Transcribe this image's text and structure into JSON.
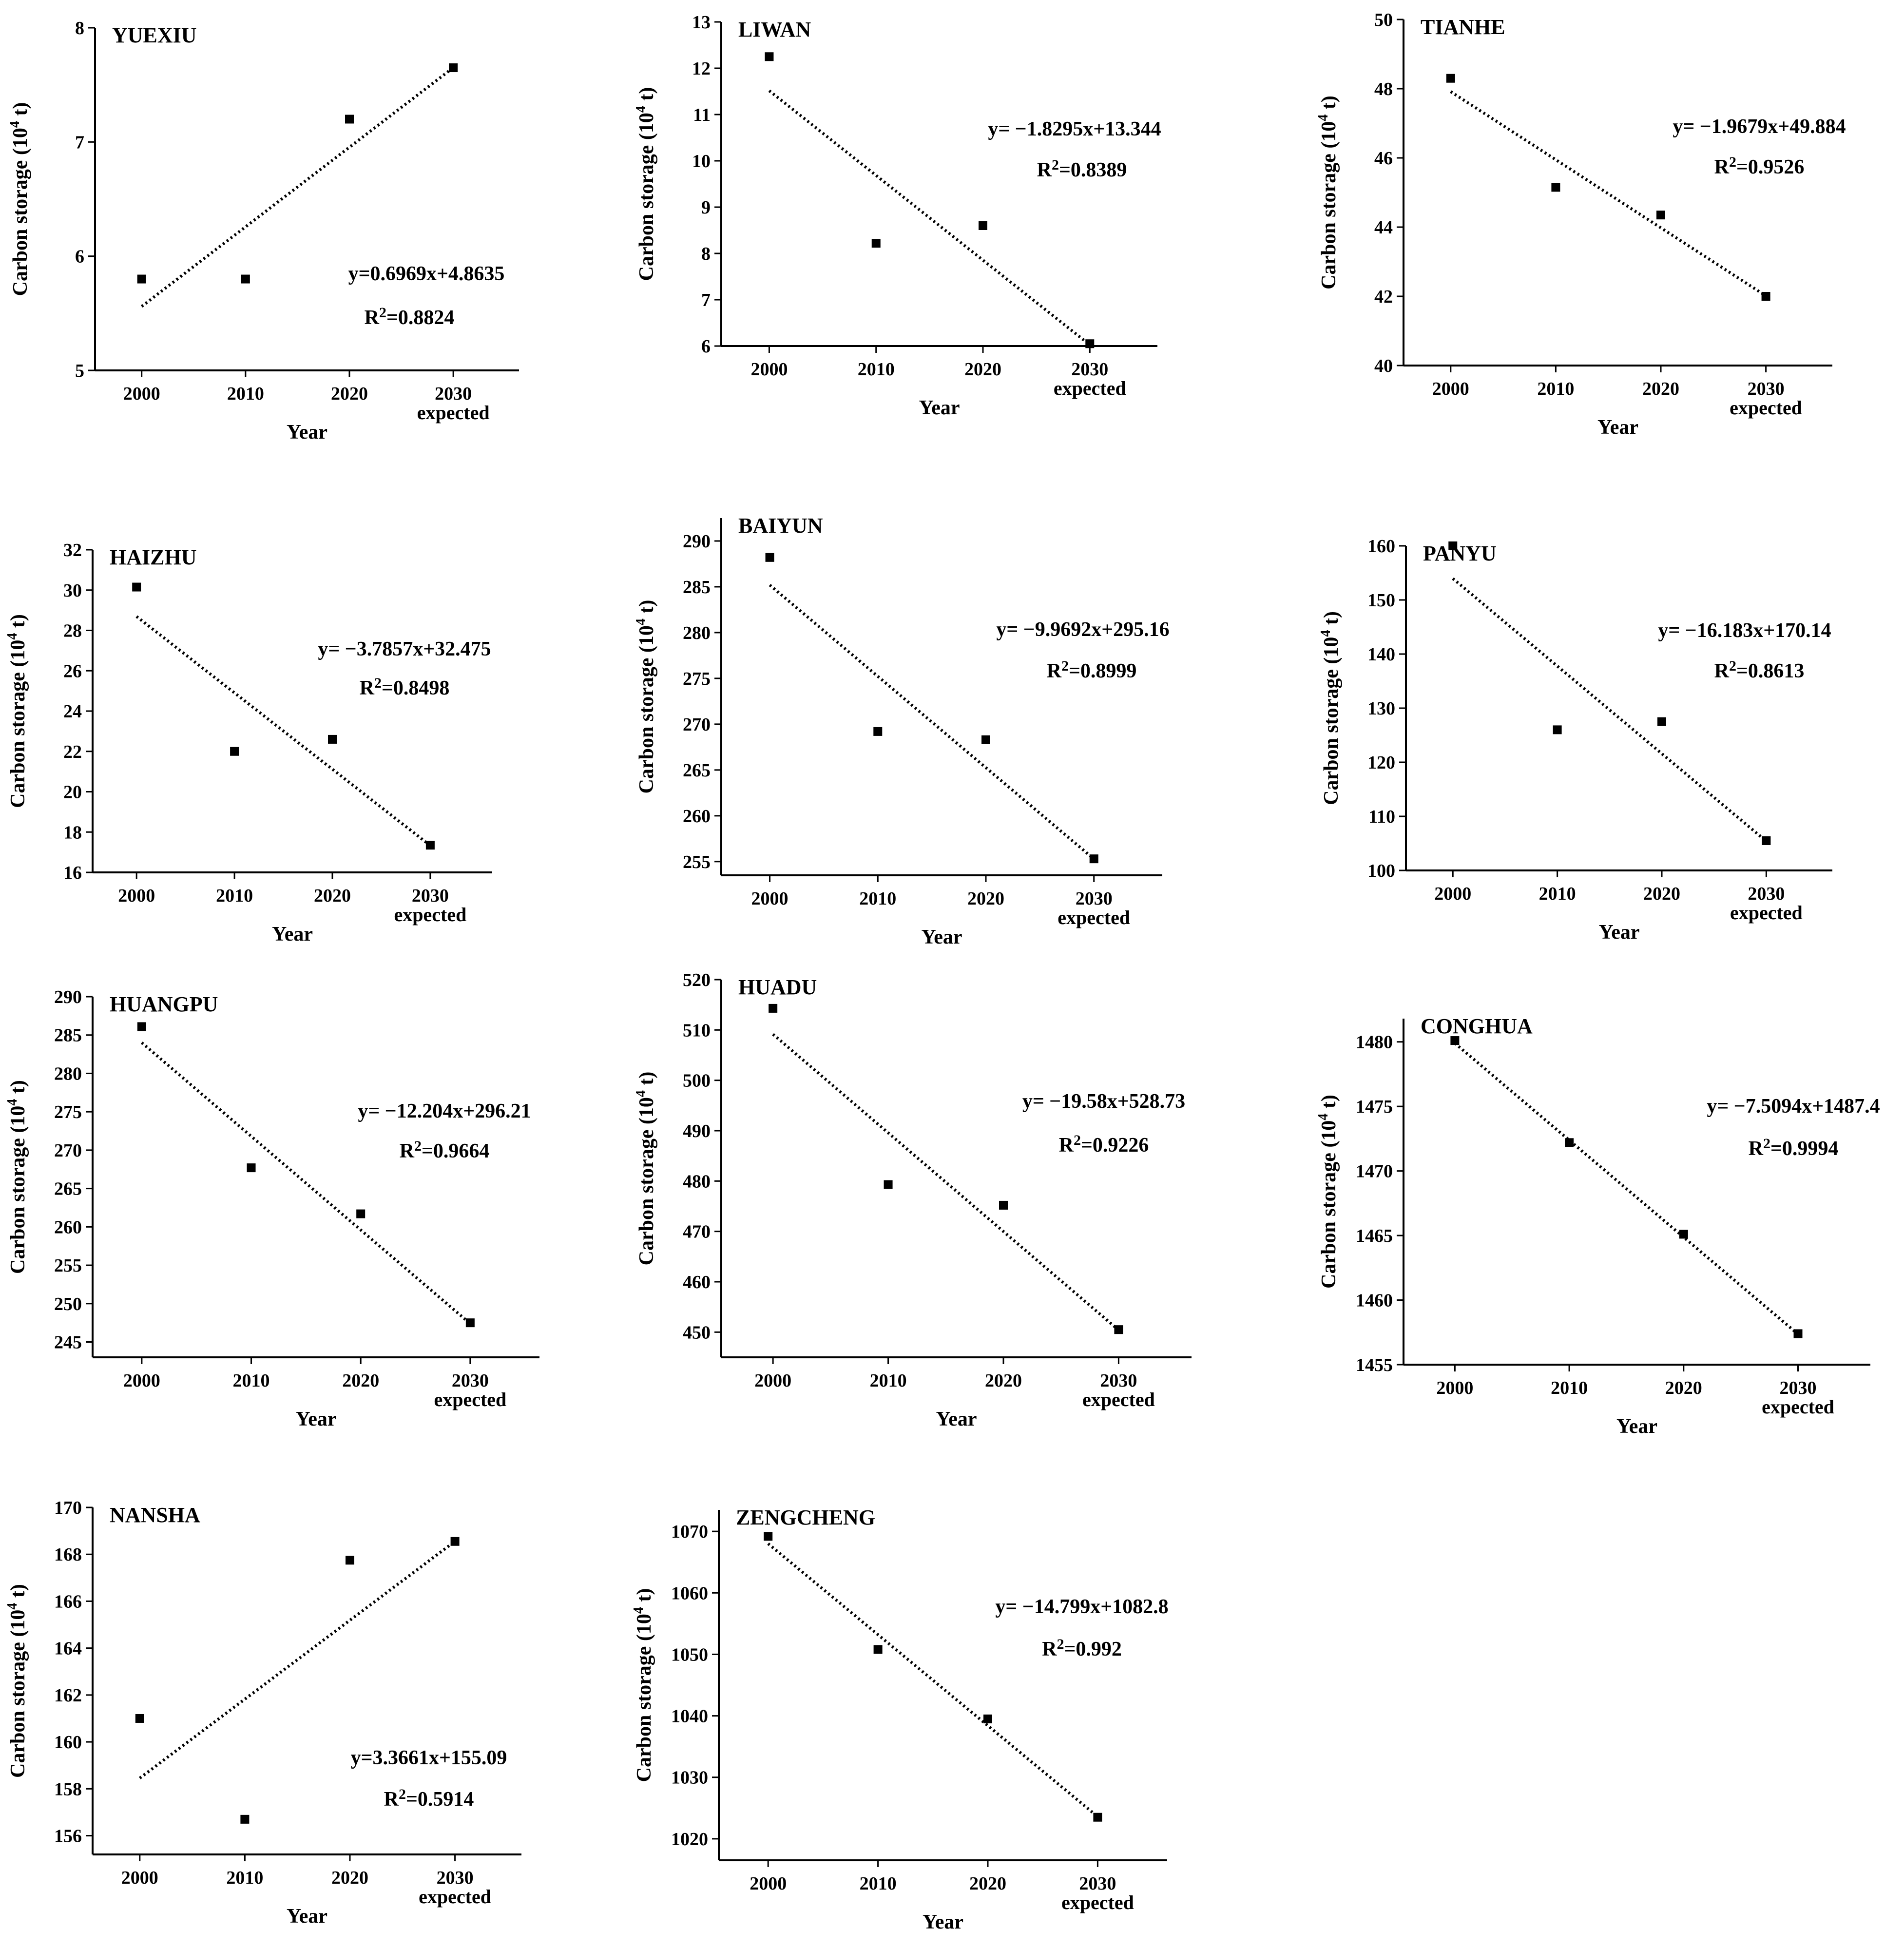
{
  "figure": {
    "colors": {
      "ink": "#000000",
      "background": "#ffffff"
    },
    "x_axis_label": "Year",
    "y_axis_label_main": "Carbon storage (10",
    "y_axis_label_sup": "4",
    "y_axis_label_end": " t)",
    "expected_label": "expected"
  },
  "chart_data": [
    {
      "type": "scatter",
      "title": "YUEXIU",
      "x_categories": [
        "2000",
        "2010",
        "2020",
        "2030"
      ],
      "values": [
        5.8,
        5.8,
        7.2,
        7.65
      ],
      "ylim": [
        5,
        8
      ],
      "yticks": [
        "5",
        "6",
        "7",
        "8"
      ],
      "trend": {
        "slope": 0.6969,
        "intercept": 4.8635
      },
      "equation": "y=0.6969x+4.8635",
      "r2_prefix": "R",
      "r2_sup": "2",
      "r2_value": "=0.8824"
    },
    {
      "type": "scatter",
      "title": "LIWAN",
      "x_categories": [
        "2000",
        "2010",
        "2020",
        "2030"
      ],
      "values": [
        12.25,
        8.22,
        8.6,
        6.05
      ],
      "ylim": [
        6,
        13
      ],
      "yticks": [
        "6",
        "7",
        "8",
        "9",
        "10",
        "11",
        "12",
        "13"
      ],
      "trend": {
        "slope": -1.8295,
        "intercept": 13.344
      },
      "equation": "y= −1.8295x+13.344",
      "r2_prefix": "R",
      "r2_sup": "2",
      "r2_value": "=0.8389"
    },
    {
      "type": "scatter",
      "title": "TIANHE",
      "x_categories": [
        "2000",
        "2010",
        "2020",
        "2030"
      ],
      "values": [
        48.3,
        45.15,
        44.35,
        42.0
      ],
      "ylim": [
        40,
        50
      ],
      "yticks": [
        "40",
        "42",
        "44",
        "46",
        "48",
        "50"
      ],
      "trend": {
        "slope": -1.9679,
        "intercept": 49.884
      },
      "equation": "y= −1.9679x+49.884",
      "r2_prefix": "R",
      "r2_sup": "2",
      "r2_value": "=0.9526"
    },
    {
      "type": "scatter",
      "title": "HAIZHU",
      "x_categories": [
        "2000",
        "2010",
        "2020",
        "2030"
      ],
      "values": [
        30.15,
        22.0,
        22.6,
        17.35
      ],
      "ylim": [
        16,
        32
      ],
      "yticks": [
        "16",
        "18",
        "20",
        "22",
        "24",
        "26",
        "28",
        "30",
        "32"
      ],
      "trend": {
        "slope": -3.7857,
        "intercept": 32.475
      },
      "equation": "y= −3.7857x+32.475",
      "r2_prefix": "R",
      "r2_sup": "2",
      "r2_value": "=0.8498"
    },
    {
      "type": "scatter",
      "title": "BAIYUN",
      "x_categories": [
        "2000",
        "2010",
        "2020",
        "2030"
      ],
      "values": [
        288.2,
        269.2,
        268.3,
        255.3
      ],
      "ylim": [
        253.5,
        292.5
      ],
      "yticks": [
        "255",
        "260",
        "265",
        "270",
        "275",
        "280",
        "285",
        "290"
      ],
      "trend": {
        "slope": -9.9692,
        "intercept": 295.16
      },
      "equation": "y= −9.9692x+295.16",
      "r2_prefix": "R",
      "r2_sup": "2",
      "r2_value": "=0.8999"
    },
    {
      "type": "scatter",
      "title": "PANYU",
      "x_categories": [
        "2000",
        "2010",
        "2020",
        "2030"
      ],
      "values": [
        160.0,
        126.0,
        127.5,
        105.5
      ],
      "ylim": [
        100,
        160
      ],
      "yticks": [
        "100",
        "110",
        "120",
        "130",
        "140",
        "150",
        "160"
      ],
      "trend": {
        "slope": -16.183,
        "intercept": 170.14
      },
      "equation": "y= −16.183x+170.14",
      "r2_prefix": "R",
      "r2_sup": "2",
      "r2_value": "=0.8613"
    },
    {
      "type": "scatter",
      "title": "HUANGPU",
      "x_categories": [
        "2000",
        "2010",
        "2020",
        "2030"
      ],
      "values": [
        286.1,
        267.7,
        261.7,
        247.5
      ],
      "ylim": [
        243,
        290
      ],
      "yticks": [
        "245",
        "250",
        "255",
        "260",
        "265",
        "270",
        "275",
        "280",
        "285",
        "290"
      ],
      "trend": {
        "slope": -12.204,
        "intercept": 296.21
      },
      "equation": "y= −12.204x+296.21",
      "r2_prefix": "R",
      "r2_sup": "2",
      "r2_value": "=0.9664"
    },
    {
      "type": "scatter",
      "title": "HUADU",
      "x_categories": [
        "2000",
        "2010",
        "2020",
        "2030"
      ],
      "values": [
        514.3,
        479.3,
        475.2,
        450.5
      ],
      "ylim": [
        445,
        520
      ],
      "yticks": [
        "450",
        "460",
        "470",
        "480",
        "490",
        "500",
        "510",
        "520"
      ],
      "trend": {
        "slope": -19.58,
        "intercept": 528.73
      },
      "equation": "y= −19.58x+528.73",
      "r2_prefix": "R",
      "r2_sup": "2",
      "r2_value": "=0.9226"
    },
    {
      "type": "scatter",
      "title": "CONGHUA",
      "x_categories": [
        "2000",
        "2010",
        "2020",
        "2030"
      ],
      "values": [
        1480.1,
        1472.2,
        1465.1,
        1457.4
      ],
      "ylim": [
        1455,
        1481.8
      ],
      "yticks": [
        "1455",
        "1460",
        "1465",
        "1470",
        "1475",
        "1480"
      ],
      "trend": {
        "slope": -7.5094,
        "intercept": 1487.4
      },
      "equation": "y= −7.5094x+1487.4",
      "r2_prefix": "R",
      "r2_sup": "2",
      "r2_value": "=0.9994"
    },
    {
      "type": "scatter",
      "title": "NANSHA",
      "x_categories": [
        "2000",
        "2010",
        "2020",
        "2030"
      ],
      "values": [
        161.0,
        156.7,
        167.75,
        168.55
      ],
      "ylim": [
        155.2,
        170
      ],
      "yticks": [
        "156",
        "158",
        "160",
        "162",
        "164",
        "166",
        "168",
        "170"
      ],
      "trend": {
        "slope": 3.3661,
        "intercept": 155.09
      },
      "equation": "y=3.3661x+155.09",
      "r2_prefix": "R",
      "r2_sup": "2",
      "r2_value": "=0.5914"
    },
    {
      "type": "scatter",
      "title": "ZENGCHENG",
      "x_categories": [
        "2000",
        "2010",
        "2020",
        "2030"
      ],
      "values": [
        1069.2,
        1050.8,
        1039.5,
        1023.5
      ],
      "ylim": [
        1016.5,
        1073.5
      ],
      "yticks": [
        "1020",
        "1030",
        "1040",
        "1050",
        "1060",
        "1070"
      ],
      "trend": {
        "slope": -14.799,
        "intercept": 1082.8
      },
      "equation": "y= −14.799x+1082.8",
      "r2_prefix": "R",
      "r2_sup": "2",
      "r2_value": "=0.992"
    }
  ]
}
